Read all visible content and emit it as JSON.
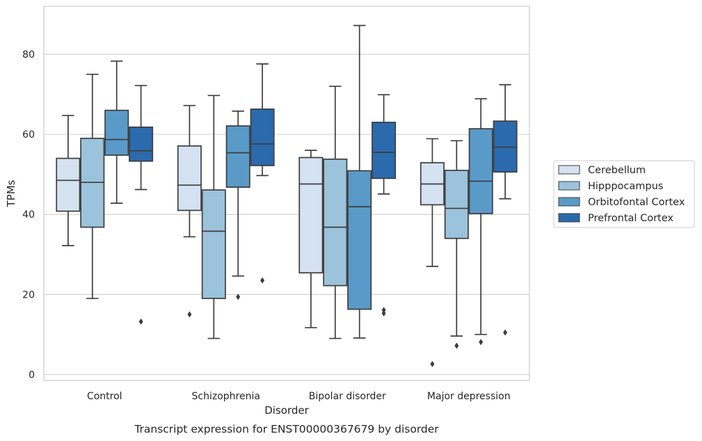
{
  "chart_data": {
    "type": "box",
    "xlabel": "Disorder",
    "ylabel": "TPMs",
    "caption": "Transcript expression for ENST00000367679 by disorder",
    "ylim": [
      -1.5,
      92
    ],
    "yticks": [
      0,
      20,
      40,
      60,
      80
    ],
    "grid": "horizontal",
    "legend_position": "right",
    "categories": [
      "Control",
      "Schizophrenia",
      "Bipolar disorder",
      "Major depression"
    ],
    "series": [
      {
        "name": "Cerebellum",
        "color": "#d4e2f1",
        "boxes": [
          {
            "whislo": 32.2,
            "q1": 40.8,
            "med": 48.5,
            "q3": 54.0,
            "whishi": 64.7,
            "fliers": []
          },
          {
            "whislo": 34.4,
            "q1": 41.0,
            "med": 47.3,
            "q3": 57.1,
            "whishi": 67.2,
            "fliers": [
              15.0
            ]
          },
          {
            "whislo": 11.7,
            "q1": 25.4,
            "med": 47.6,
            "q3": 54.2,
            "whishi": 56.0,
            "fliers": []
          },
          {
            "whislo": 27.0,
            "q1": 42.4,
            "med": 47.6,
            "q3": 52.9,
            "whishi": 58.9,
            "fliers": [
              2.6
            ]
          }
        ]
      },
      {
        "name": "Hipppocampus",
        "color": "#9cc3dc",
        "boxes": [
          {
            "whislo": 19.0,
            "q1": 36.8,
            "med": 48.0,
            "q3": 59.0,
            "whishi": 75.0,
            "fliers": []
          },
          {
            "whislo": 9.0,
            "q1": 19.0,
            "med": 35.8,
            "q3": 46.1,
            "whishi": 69.7,
            "fliers": []
          },
          {
            "whislo": 9.0,
            "q1": 22.2,
            "med": 36.8,
            "q3": 53.8,
            "whishi": 72.0,
            "fliers": []
          },
          {
            "whislo": 9.6,
            "q1": 34.0,
            "med": 41.5,
            "q3": 51.0,
            "whishi": 58.4,
            "fliers": [
              7.2
            ]
          }
        ]
      },
      {
        "name": "Orbitofontal Cortex",
        "color": "#5a9ac9",
        "boxes": [
          {
            "whislo": 42.8,
            "q1": 54.8,
            "med": 58.7,
            "q3": 66.0,
            "whishi": 78.3,
            "fliers": []
          },
          {
            "whislo": 24.6,
            "q1": 46.8,
            "med": 55.4,
            "q3": 62.1,
            "whishi": 65.8,
            "fliers": [
              19.4
            ]
          },
          {
            "whislo": 9.1,
            "q1": 16.3,
            "med": 41.9,
            "q3": 50.9,
            "whishi": 87.2,
            "fliers": []
          },
          {
            "whislo": 10.0,
            "q1": 40.2,
            "med": 48.3,
            "q3": 61.4,
            "whishi": 68.9,
            "fliers": [
              8.1
            ]
          }
        ]
      },
      {
        "name": "Prefrontal Cortex",
        "color": "#2b6aad",
        "boxes": [
          {
            "whislo": 46.2,
            "q1": 53.3,
            "med": 55.9,
            "q3": 61.8,
            "whishi": 72.2,
            "fliers": [
              13.2
            ]
          },
          {
            "whislo": 49.7,
            "q1": 52.2,
            "med": 57.6,
            "q3": 66.3,
            "whishi": 77.6,
            "fliers": [
              23.5
            ]
          },
          {
            "whislo": 45.1,
            "q1": 49.0,
            "med": 55.5,
            "q3": 63.0,
            "whishi": 69.9,
            "fliers": [
              15.3,
              16.1
            ]
          },
          {
            "whislo": 43.9,
            "q1": 50.6,
            "med": 56.8,
            "q3": 63.3,
            "whishi": 72.4,
            "fliers": [
              10.5
            ]
          }
        ]
      }
    ]
  }
}
